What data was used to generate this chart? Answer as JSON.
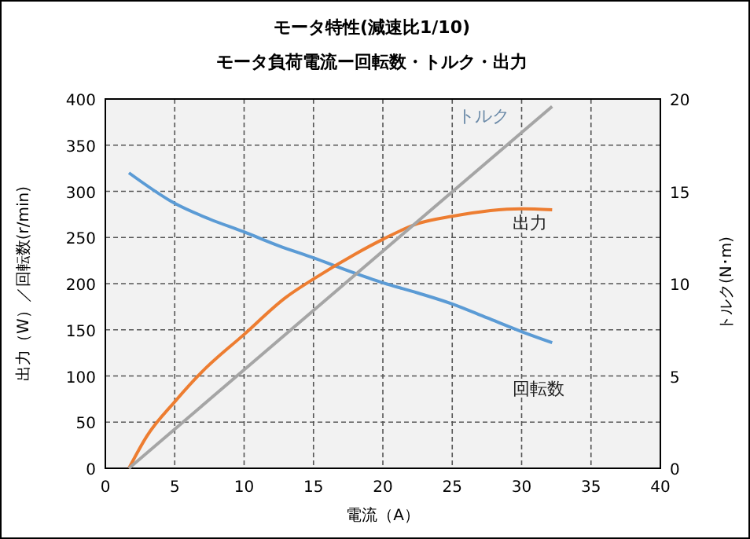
{
  "chart_data": {
    "type": "line",
    "title": "モータ特性(減速比1/10)",
    "subtitle": "モータ負荷電流ー回転数・トルク・出力",
    "xlabel": "電流（A）",
    "ylabel": "出力（W）／回転数(r/min)",
    "y2label": "トルク(N･m)",
    "xlim": [
      0,
      40
    ],
    "xticks": [
      0,
      5,
      10,
      15,
      20,
      25,
      30,
      35,
      40
    ],
    "ylim": [
      0,
      400
    ],
    "yticks": [
      0,
      50,
      100,
      150,
      200,
      250,
      300,
      350,
      400
    ],
    "y2lim": [
      0,
      20
    ],
    "y2ticks": [
      0,
      5,
      10,
      15,
      20
    ],
    "grid": true,
    "marker": "none",
    "line_style": "solid",
    "series": [
      {
        "name": "回転数",
        "color": "#5b9bd5",
        "x": [
          1.7,
          5,
          7.5,
          10,
          12.5,
          15,
          17.5,
          20,
          22.5,
          25,
          27.5,
          30,
          32.2
        ],
        "values": [
          320,
          287,
          270,
          256,
          241,
          228,
          214,
          201,
          190,
          178,
          163,
          148,
          136
        ]
      },
      {
        "name": "出力",
        "color": "#ed7d31",
        "x": [
          1.7,
          3,
          5,
          7,
          10,
          13,
          15,
          18,
          20,
          22.5,
          25,
          30,
          32.2
        ],
        "values": [
          0,
          35,
          72,
          105,
          145,
          185,
          205,
          232,
          248,
          265,
          273,
          281,
          280
        ]
      },
      {
        "name": "トルク",
        "color": "#a5a5a5",
        "axis": "y2",
        "x": [
          1.7,
          32.2
        ],
        "values": [
          0,
          19.6
        ]
      }
    ]
  }
}
